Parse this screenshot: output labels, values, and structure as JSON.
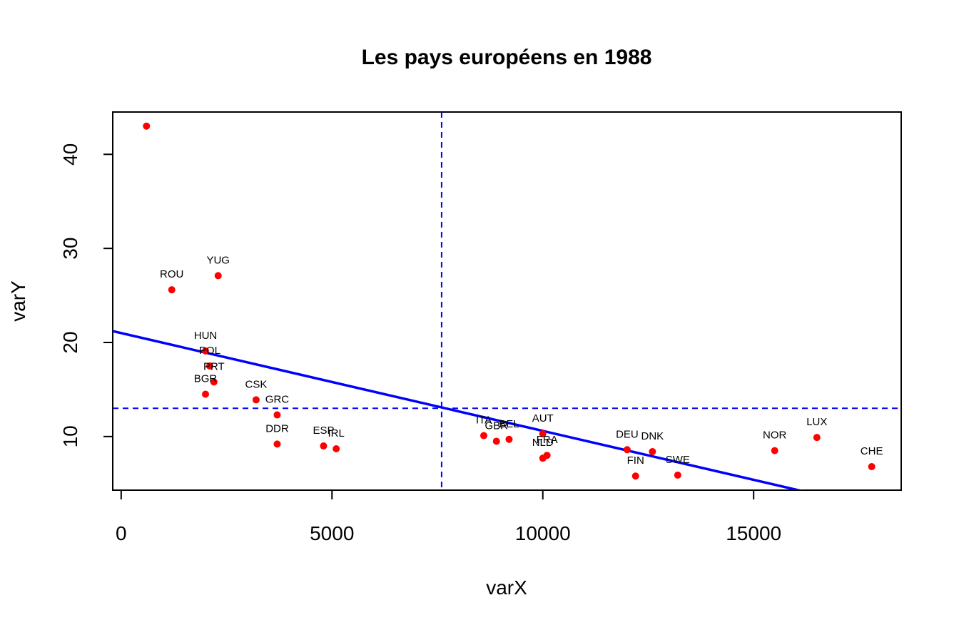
{
  "chart_data": {
    "type": "scatter",
    "title": "Les pays européens en 1988",
    "xlabel": "varX",
    "ylabel": "varY",
    "xlim": [
      -200,
      18500
    ],
    "ylim": [
      4.3,
      44.5
    ],
    "xticks": [
      0,
      5000,
      10000,
      15000
    ],
    "yticks": [
      10,
      20,
      30,
      40
    ],
    "grid": false,
    "colors": {
      "points": "#ff0000",
      "lines": "#0000ff",
      "frame": "#000000"
    },
    "points": [
      {
        "label": "",
        "x": 600,
        "y": 43
      },
      {
        "label": "ROU",
        "x": 1200,
        "y": 25.6
      },
      {
        "label": "YUG",
        "x": 2300,
        "y": 27.1
      },
      {
        "label": "HUN",
        "x": 2000,
        "y": 19.1
      },
      {
        "label": "POL",
        "x": 2100,
        "y": 17.5
      },
      {
        "label": "PRT",
        "x": 2200,
        "y": 15.8
      },
      {
        "label": "BGR",
        "x": 2000,
        "y": 14.5
      },
      {
        "label": "CSK",
        "x": 3200,
        "y": 13.9
      },
      {
        "label": "GRC",
        "x": 3700,
        "y": 12.3
      },
      {
        "label": "DDR",
        "x": 3700,
        "y": 9.2
      },
      {
        "label": "ESP",
        "x": 4800,
        "y": 9.0
      },
      {
        "label": "IRL",
        "x": 5100,
        "y": 8.7
      },
      {
        "label": "ITA",
        "x": 8600,
        "y": 10.1
      },
      {
        "label": "GBR",
        "x": 8900,
        "y": 9.5
      },
      {
        "label": "BEL",
        "x": 9200,
        "y": 9.7
      },
      {
        "label": "AUT",
        "x": 10000,
        "y": 10.3
      },
      {
        "label": "FRA",
        "x": 10100,
        "y": 8.0
      },
      {
        "label": "NLD",
        "x": 10000,
        "y": 7.7
      },
      {
        "label": "DEU",
        "x": 12000,
        "y": 8.6
      },
      {
        "label": "DNK",
        "x": 12600,
        "y": 8.4
      },
      {
        "label": "FIN",
        "x": 12200,
        "y": 5.8
      },
      {
        "label": "SWE",
        "x": 13200,
        "y": 5.9
      },
      {
        "label": "NOR",
        "x": 15500,
        "y": 8.5
      },
      {
        "label": "LUX",
        "x": 16500,
        "y": 9.9
      },
      {
        "label": "CHE",
        "x": 17800,
        "y": 6.8
      }
    ],
    "regression": {
      "intercept": 21.0,
      "slope": -0.00104
    },
    "mean_x": 7600,
    "mean_y": 13.0
  }
}
